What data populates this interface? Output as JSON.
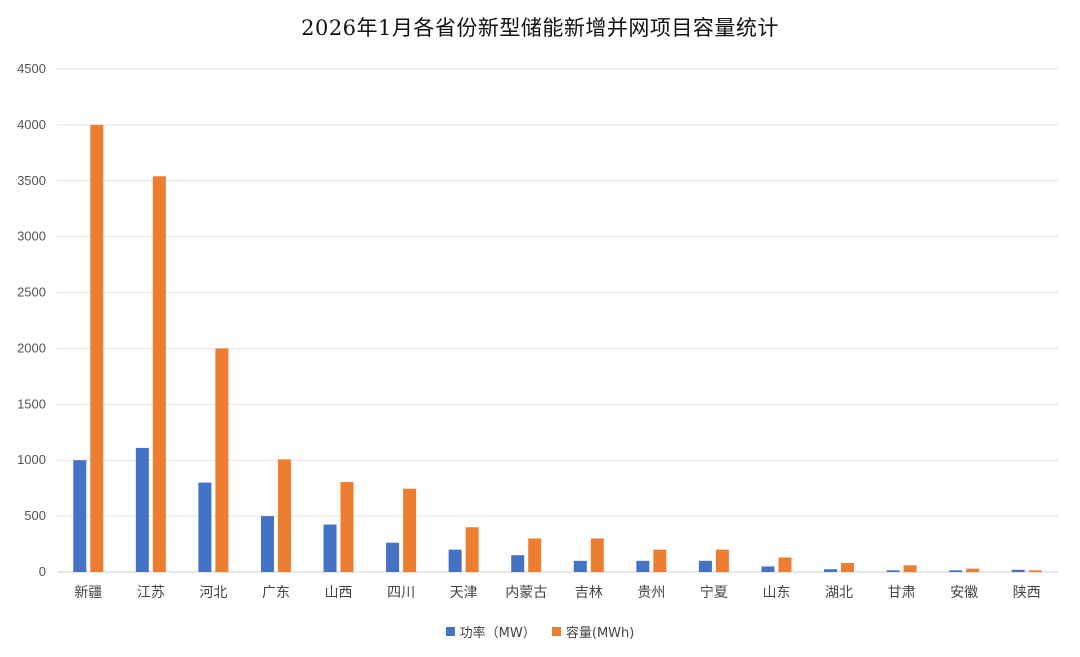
{
  "chart_data": {
    "type": "bar",
    "title": "2026年1月各省份新型储能新增并网项目容量统计",
    "xlabel": "",
    "ylabel": "",
    "ylim": [
      0,
      4500
    ],
    "yticks": [
      0,
      500,
      1000,
      1500,
      2000,
      2500,
      3000,
      3500,
      4000,
      4500
    ],
    "grid": true,
    "legend_position": "bottom",
    "categories": [
      "新疆",
      "江苏",
      "河北",
      "广东",
      "山西",
      "四川",
      "天津",
      "内蒙古",
      "吉林",
      "贵州",
      "宁夏",
      "山东",
      "湖北",
      "甘肃",
      "安徽",
      "陕西"
    ],
    "series": [
      {
        "name": "功率（MW）",
        "color": "#4472C4",
        "values": [
          1000,
          1110,
          800,
          500,
          425,
          262,
          200,
          150,
          100,
          100,
          100,
          50,
          25,
          15,
          15,
          20
        ]
      },
      {
        "name": "容量(MWh)",
        "color": "#ED7D31",
        "values": [
          4000,
          3540,
          2000,
          1008,
          805,
          745,
          400,
          300,
          300,
          200,
          200,
          130,
          80,
          60,
          30,
          15
        ]
      }
    ]
  }
}
